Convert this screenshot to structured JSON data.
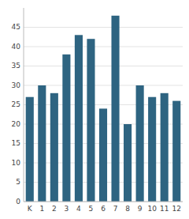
{
  "chart_data": {
    "type": "bar",
    "categories": [
      "K",
      "1",
      "2",
      "3",
      "4",
      "5",
      "6",
      "7",
      "8",
      "9",
      "10",
      "11",
      "12"
    ],
    "values": [
      27,
      30,
      28,
      38,
      43,
      42,
      24,
      48,
      20,
      30,
      27,
      28,
      26
    ],
    "color": "#2e6481",
    "ylim": [
      0,
      50
    ],
    "yticks": [
      0,
      5,
      10,
      15,
      20,
      25,
      30,
      35,
      40,
      45
    ],
    "grid": true
  }
}
